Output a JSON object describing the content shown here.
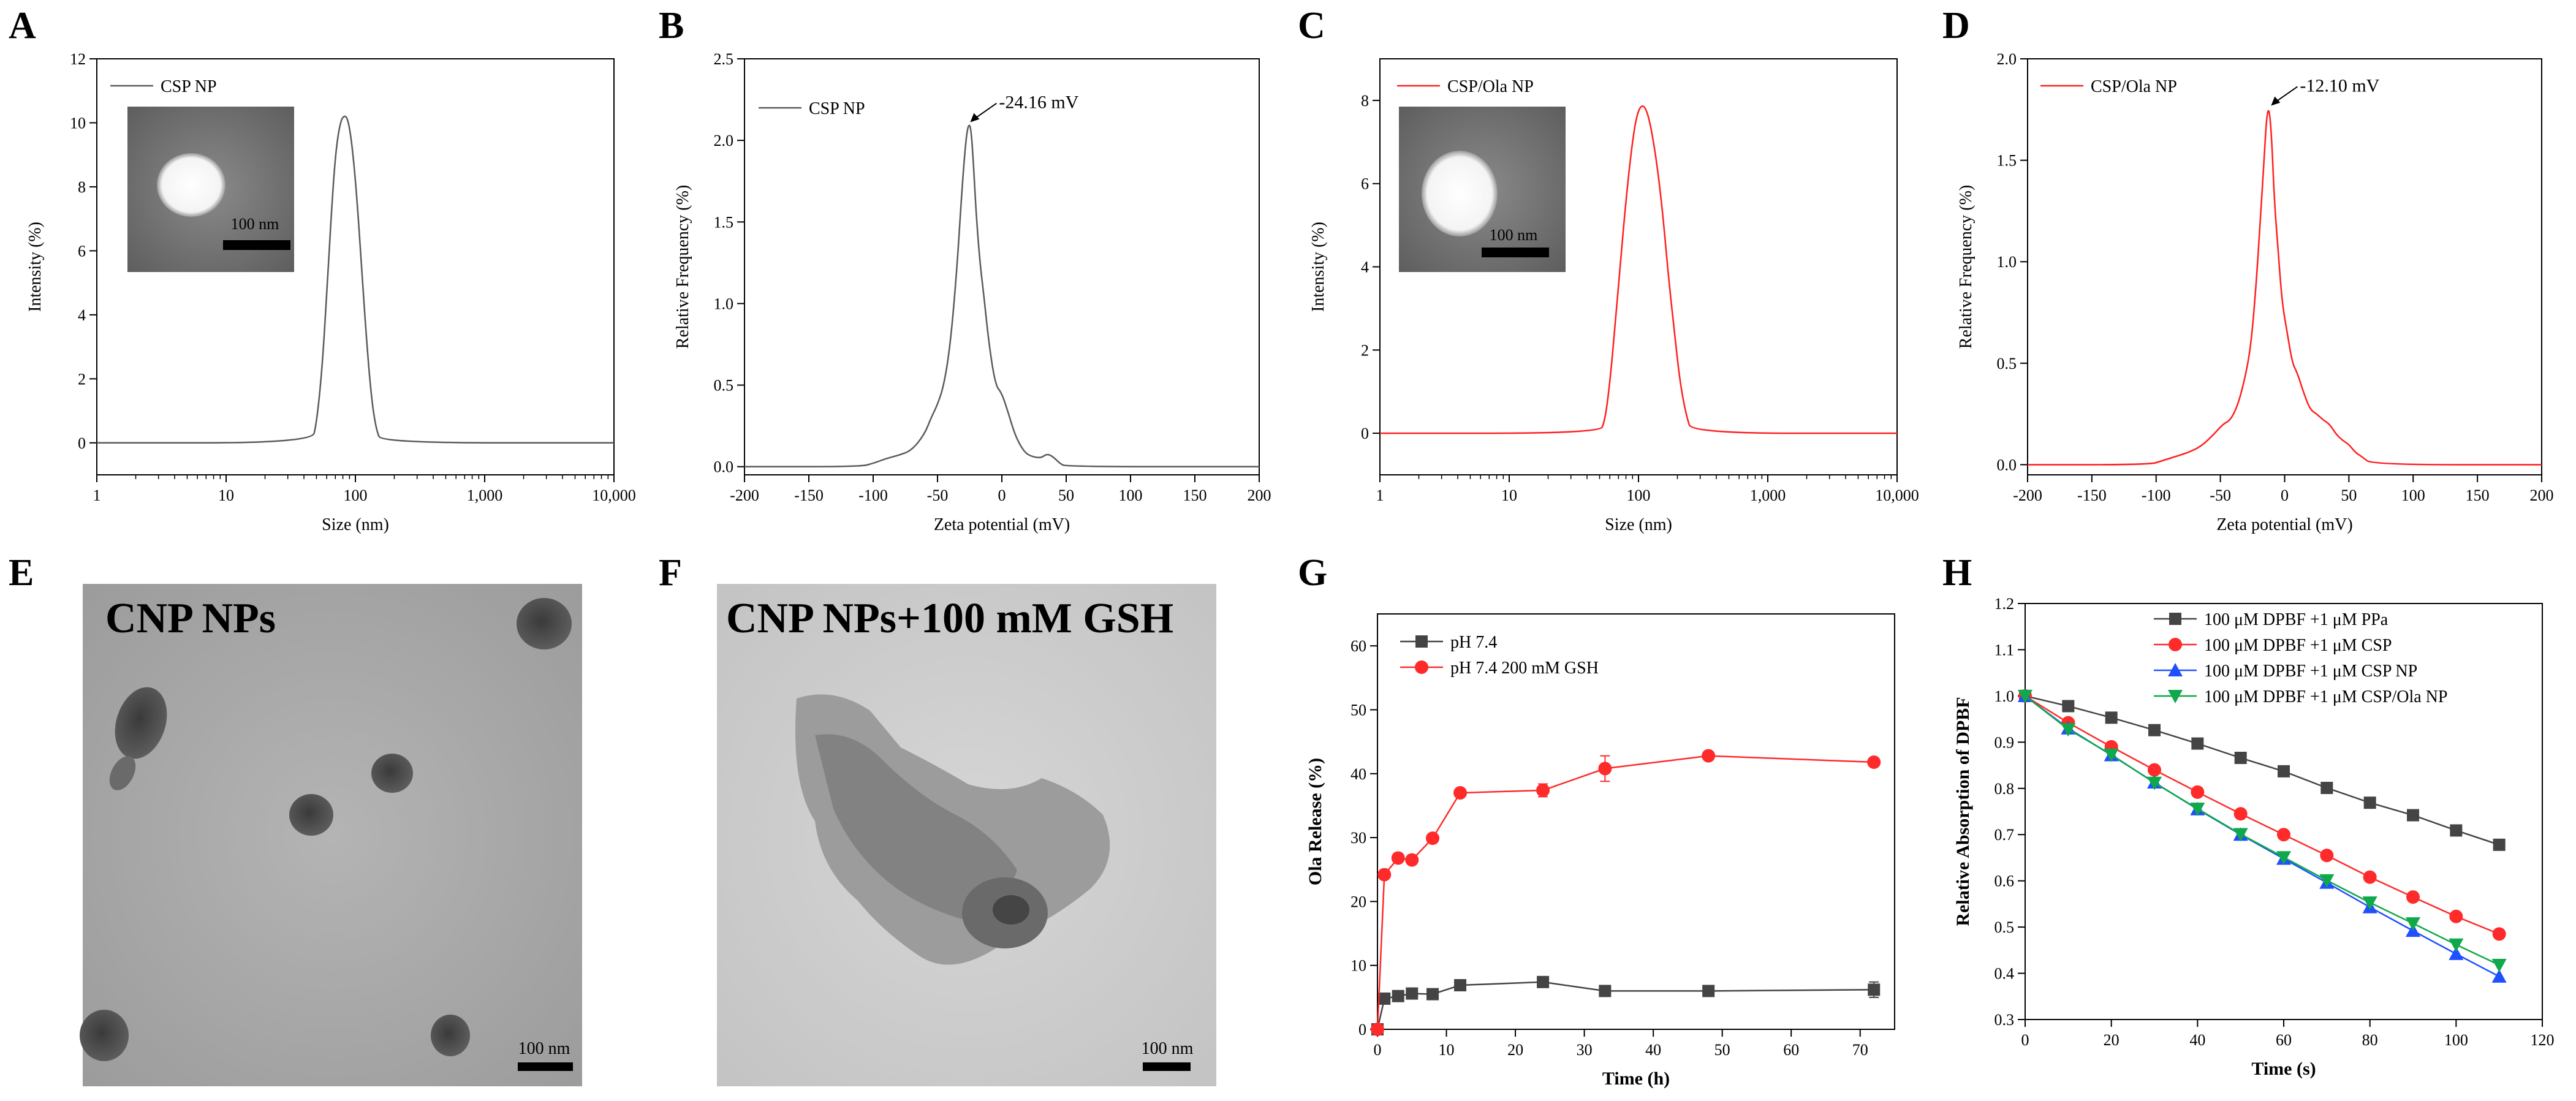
{
  "figure": {
    "type": "multi-panel scientific figure"
  },
  "chart_data": [
    {
      "panel": "A",
      "type": "line",
      "xscale": "log",
      "xlabel": "Size (nm)",
      "ylabel": "Intensity  (%)",
      "xlim": [
        1,
        10000
      ],
      "ylim": [
        -1,
        12
      ],
      "xticks": [
        1,
        10,
        100,
        1000,
        10000
      ],
      "xtick_labels": [
        "1",
        "10",
        "100",
        "1,000",
        "10,000"
      ],
      "yticks": [
        0,
        2,
        4,
        6,
        8,
        10,
        12
      ],
      "ytick_labels": [
        "0",
        "2",
        "4",
        "6",
        "8",
        "10",
        "12"
      ],
      "color": "#5a5a5a",
      "series": [
        {
          "name": "CSP NP",
          "x": [
            1,
            46,
            50,
            55,
            60,
            65,
            70,
            76,
            82,
            88,
            95,
            103,
            112,
            122,
            133,
            145,
            160,
            10000
          ],
          "y": [
            0,
            0,
            0.6,
            2.2,
            4.6,
            7.1,
            9.0,
            10.0,
            10.25,
            10.1,
            9.2,
            7.6,
            5.4,
            3.2,
            1.4,
            0.4,
            0,
            0
          ]
        }
      ],
      "inset": {
        "type": "TEM image",
        "scale_label": "100 nm"
      }
    },
    {
      "panel": "B",
      "type": "line",
      "xlabel": "Zeta potential (mV)",
      "ylabel": "Relative Frequency (%)",
      "xlim": [
        -200,
        200
      ],
      "ylim": [
        -0.05,
        2.5
      ],
      "xticks": [
        -200,
        -150,
        -100,
        -50,
        0,
        50,
        100,
        150,
        200
      ],
      "xtick_labels": [
        "-200",
        "-150",
        "-100",
        "-50",
        "0",
        "50",
        "100",
        "150",
        "200"
      ],
      "yticks": [
        0,
        0.5,
        1.0,
        1.5,
        2.0,
        2.5
      ],
      "ytick_labels": [
        "0.0",
        "0.5",
        "1.0",
        "1.5",
        "2.0",
        "2.5"
      ],
      "color": "#5a5a5a",
      "series": [
        {
          "name": "CSP NP",
          "x": [
            -200,
            -110,
            -100,
            -90,
            -80,
            -70,
            -60,
            -55,
            -50,
            -45,
            -40,
            -35,
            -31,
            -28,
            -26,
            -24,
            -22,
            -20,
            -17,
            -14,
            -10,
            -5,
            0,
            5,
            10,
            15,
            20,
            30,
            35,
            40,
            45,
            50,
            200
          ],
          "y": [
            0,
            0,
            0.02,
            0.05,
            0.07,
            0.1,
            0.2,
            0.3,
            0.38,
            0.5,
            0.75,
            1.2,
            1.7,
            2.0,
            2.1,
            2.08,
            1.85,
            1.55,
            1.25,
            1.05,
            0.75,
            0.5,
            0.45,
            0.33,
            0.2,
            0.12,
            0.07,
            0.05,
            0.08,
            0.06,
            0.02,
            0,
            0
          ]
        }
      ],
      "annotation": "-24.16 mV"
    },
    {
      "panel": "C",
      "type": "line",
      "xscale": "log",
      "xlabel": "Size (nm)",
      "ylabel": "Intensity  (%)",
      "xlim": [
        1,
        10000
      ],
      "ylim": [
        -1,
        9
      ],
      "xticks": [
        1,
        10,
        100,
        1000,
        10000
      ],
      "xtick_labels": [
        "1",
        "10",
        "100",
        "1,000",
        "10,000"
      ],
      "yticks": [
        0,
        2,
        4,
        6,
        8
      ],
      "ytick_labels": [
        "0",
        "2",
        "4",
        "6",
        "8"
      ],
      "color": "#ff1f1f",
      "series": [
        {
          "name": "CSP/Ola NP",
          "x": [
            1,
            50,
            55,
            60,
            66,
            72,
            80,
            88,
            96,
            105,
            115,
            126,
            140,
            155,
            170,
            190,
            210,
            235,
            260,
            10000
          ],
          "y": [
            0,
            0,
            0.3,
            1.2,
            2.6,
            4.0,
            5.6,
            6.8,
            7.6,
            7.9,
            7.8,
            7.3,
            6.4,
            5.2,
            3.8,
            2.4,
            1.2,
            0.4,
            0,
            0
          ]
        }
      ],
      "inset": {
        "type": "TEM image",
        "scale_label": "100 nm"
      }
    },
    {
      "panel": "D",
      "type": "line",
      "xlabel": "Zeta potential (mV)",
      "ylabel": "Relative Frequency (%)",
      "xlim": [
        -200,
        200
      ],
      "ylim": [
        -0.05,
        2.0
      ],
      "xticks": [
        -200,
        -150,
        -100,
        -50,
        0,
        50,
        100,
        150,
        200
      ],
      "xtick_labels": [
        "-200",
        "-150",
        "-100",
        "-50",
        "0",
        "50",
        "100",
        "150",
        "200"
      ],
      "yticks": [
        0,
        0.5,
        1.0,
        1.5,
        2.0
      ],
      "ytick_labels": [
        "0.0",
        "0.5",
        "1.0",
        "1.5",
        "2.0"
      ],
      "color": "#ff1f1f",
      "series": [
        {
          "name": "CSP/Ola NP",
          "x": [
            -200,
            -105,
            -95,
            -85,
            -75,
            -65,
            -55,
            -48,
            -42,
            -36,
            -30,
            -26,
            -22,
            -19,
            -16,
            -14,
            -12,
            -10,
            -8,
            -5,
            -2,
            2,
            6,
            10,
            15,
            20,
            25,
            30,
            35,
            40,
            45,
            50,
            55,
            60,
            68,
            200
          ],
          "y": [
            0,
            0,
            0.02,
            0.04,
            0.06,
            0.09,
            0.15,
            0.2,
            0.22,
            0.3,
            0.45,
            0.6,
            0.9,
            1.2,
            1.5,
            1.72,
            1.76,
            1.6,
            1.3,
            1.05,
            0.8,
            0.65,
            0.5,
            0.45,
            0.35,
            0.27,
            0.25,
            0.22,
            0.2,
            0.15,
            0.12,
            0.1,
            0.06,
            0.04,
            0,
            0
          ]
        }
      ],
      "annotation": "-12.10 mV"
    },
    {
      "panel": "G",
      "type": "line",
      "xlabel": "Time (h)",
      "ylabel": "Ola Release (%)",
      "xlim": [
        0,
        75
      ],
      "ylim": [
        0,
        65
      ],
      "xticks": [
        0,
        10,
        20,
        30,
        40,
        50,
        60,
        70
      ],
      "xtick_labels": [
        "0",
        "10",
        "20",
        "30",
        "40",
        "50",
        "60",
        "70"
      ],
      "yticks": [
        0,
        10,
        20,
        30,
        40,
        50,
        60
      ],
      "ytick_labels": [
        "0",
        "10",
        "20",
        "30",
        "40",
        "50",
        "60"
      ],
      "series": [
        {
          "name": "pH 7.4",
          "color": "#444444",
          "marker": "square",
          "x": [
            0,
            1,
            3,
            5,
            8,
            12,
            24,
            33,
            48,
            72
          ],
          "y": [
            0,
            4.8,
            5.2,
            5.6,
            5.5,
            6.9,
            7.4,
            6.0,
            6.0,
            6.2
          ],
          "err": [
            0,
            0.3,
            0.3,
            0.3,
            0.3,
            0.4,
            0.4,
            0.3,
            0.3,
            1.2
          ]
        },
        {
          "name": "pH 7.4  200 mM GSH",
          "color": "#ff2a2a",
          "marker": "circle",
          "x": [
            0,
            1,
            3,
            5,
            8,
            12,
            24,
            33,
            48,
            72
          ],
          "y": [
            0,
            24.2,
            26.8,
            26.5,
            29.9,
            37.0,
            37.4,
            40.8,
            42.8,
            41.8
          ],
          "err": [
            0,
            0.4,
            0.4,
            0.4,
            0.4,
            0.5,
            1.0,
            2.0,
            0.4,
            0.5
          ]
        }
      ]
    },
    {
      "panel": "H",
      "type": "line",
      "xlabel": "Time (s)",
      "ylabel": "Relative Absorption of DPBF",
      "xlim": [
        0,
        120
      ],
      "ylim": [
        0.3,
        1.2
      ],
      "xticks": [
        0,
        20,
        40,
        60,
        80,
        100,
        120
      ],
      "xtick_labels": [
        "0",
        "20",
        "40",
        "60",
        "80",
        "100",
        "120"
      ],
      "yticks": [
        0.3,
        0.4,
        0.5,
        0.6,
        0.7,
        0.8,
        0.9,
        1.0,
        1.1,
        1.2
      ],
      "ytick_labels": [
        "0.3",
        "0.4",
        "0.5",
        "0.6",
        "0.7",
        "0.8",
        "0.9",
        "1.0",
        "1.1",
        "1.2"
      ],
      "series": [
        {
          "name": "100 μM DPBF +1 μM PPa",
          "color": "#444444",
          "marker": "square",
          "x": [
            0,
            10,
            20,
            30,
            40,
            50,
            60,
            70,
            80,
            90,
            100,
            110
          ],
          "y": [
            1.0,
            0.978,
            0.953,
            0.926,
            0.897,
            0.866,
            0.837,
            0.801,
            0.769,
            0.742,
            0.709,
            0.678
          ]
        },
        {
          "name": "100 μM DPBF +1 μM CSP",
          "color": "#ff2a2a",
          "marker": "circle",
          "x": [
            0,
            10,
            20,
            30,
            40,
            50,
            60,
            70,
            80,
            90,
            100,
            110
          ],
          "y": [
            1.0,
            0.942,
            0.89,
            0.84,
            0.792,
            0.745,
            0.7,
            0.655,
            0.608,
            0.565,
            0.523,
            0.485
          ]
        },
        {
          "name": "100 μM DPBF +1 μM CSP NP",
          "color": "#1f4fff",
          "marker": "triangle-up",
          "x": [
            0,
            10,
            20,
            30,
            40,
            50,
            60,
            70,
            80,
            90,
            100,
            110
          ],
          "y": [
            1.0,
            0.93,
            0.872,
            0.813,
            0.755,
            0.7,
            0.648,
            0.596,
            0.543,
            0.492,
            0.442,
            0.393
          ]
        },
        {
          "name": "100 μM DPBF +1 μM CSP/Ola NP",
          "color": "#0fa84a",
          "marker": "triangle-down",
          "x": [
            0,
            10,
            20,
            30,
            40,
            50,
            60,
            70,
            80,
            90,
            100,
            110
          ],
          "y": [
            1.0,
            0.928,
            0.873,
            0.812,
            0.756,
            0.701,
            0.651,
            0.601,
            0.553,
            0.508,
            0.462,
            0.418
          ]
        }
      ]
    }
  ],
  "images": {
    "E": {
      "label": "CNP NPs",
      "scale_label": "100 nm"
    },
    "F": {
      "label": "CNP NPs+100 mM GSH",
      "scale_label": "100 nm"
    }
  }
}
